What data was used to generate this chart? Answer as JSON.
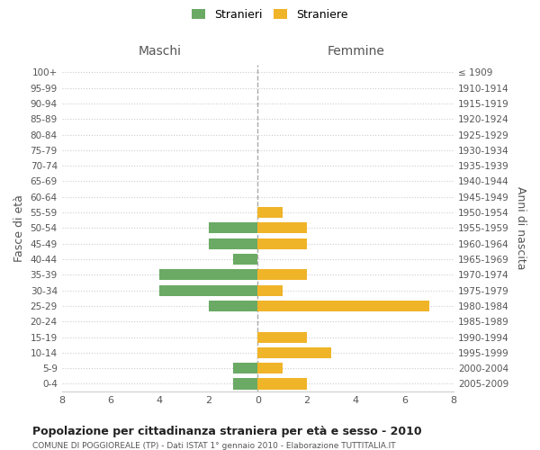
{
  "age_groups": [
    "100+",
    "95-99",
    "90-94",
    "85-89",
    "80-84",
    "75-79",
    "70-74",
    "65-69",
    "60-64",
    "55-59",
    "50-54",
    "45-49",
    "40-44",
    "35-39",
    "30-34",
    "25-29",
    "20-24",
    "15-19",
    "10-14",
    "5-9",
    "0-4"
  ],
  "birth_years": [
    "≤ 1909",
    "1910-1914",
    "1915-1919",
    "1920-1924",
    "1925-1929",
    "1930-1934",
    "1935-1939",
    "1940-1944",
    "1945-1949",
    "1950-1954",
    "1955-1959",
    "1960-1964",
    "1965-1969",
    "1970-1974",
    "1975-1979",
    "1980-1984",
    "1985-1989",
    "1990-1994",
    "1995-1999",
    "2000-2004",
    "2005-2009"
  ],
  "maschi": [
    0,
    0,
    0,
    0,
    0,
    0,
    0,
    0,
    0,
    0,
    2,
    2,
    1,
    4,
    4,
    2,
    0,
    0,
    0,
    1,
    1
  ],
  "femmine": [
    0,
    0,
    0,
    0,
    0,
    0,
    0,
    0,
    0,
    1,
    2,
    2,
    0,
    2,
    1,
    7,
    0,
    2,
    3,
    1,
    2
  ],
  "color_maschi": "#6aaa64",
  "color_femmine": "#f0b429",
  "xlim": 8,
  "title": "Popolazione per cittadinanza straniera per età e sesso - 2010",
  "subtitle": "COMUNE DI POGGIOREALE (TP) - Dati ISTAT 1° gennaio 2010 - Elaborazione TUTTITALIA.IT",
  "ylabel_left": "Fasce di età",
  "ylabel_right": "Anni di nascita",
  "label_maschi": "Stranieri",
  "label_femmine": "Straniere",
  "header_maschi": "Maschi",
  "header_femmine": "Femmine",
  "bg_color": "#ffffff",
  "grid_color": "#cccccc"
}
